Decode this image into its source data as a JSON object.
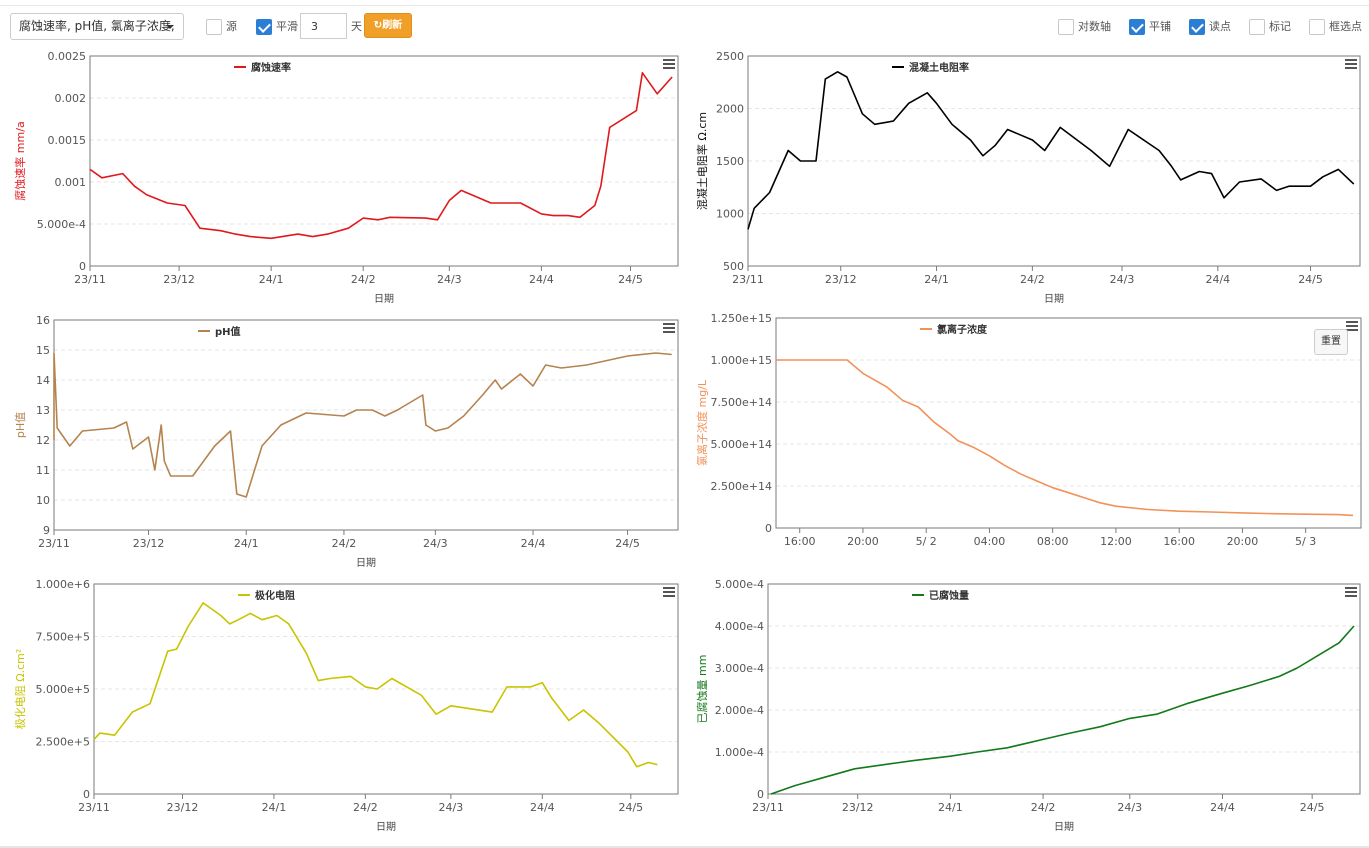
{
  "toolbar": {
    "selector_value": "腐蚀速率, pH值, 氯离子浓度,",
    "options_left": [
      {
        "label": "源",
        "checked": false
      },
      {
        "label": "平滑",
        "checked": true
      }
    ],
    "smooth_days": "3",
    "days_unit": "天",
    "refresh_label": "刷新",
    "options_right": [
      {
        "label": "对数轴",
        "checked": false
      },
      {
        "label": "平铺",
        "checked": true
      },
      {
        "label": "读点",
        "checked": true
      },
      {
        "label": "标记",
        "checked": false
      },
      {
        "label": "框选点",
        "checked": false
      }
    ]
  },
  "charts": {
    "reset_label": "重置"
  },
  "chart_data": [
    {
      "id": "corrosion-rate",
      "type": "line",
      "legend": "腐蚀速率",
      "color": "#e0191c",
      "ylabel": "腐蚀速率 mm/a",
      "xlabel": "日期",
      "x_ticks": [
        "23/11",
        "23/12",
        "24/1",
        "24/2",
        "24/3",
        "24/4",
        "24/5"
      ],
      "y_ticks": [
        "0",
        "5.000e-4",
        "0.001",
        "0.0015",
        "0.002",
        "0.0025"
      ],
      "ylim": [
        0,
        0.0025
      ],
      "x": [
        "2023-11-01",
        "2023-11-05",
        "2023-11-12",
        "2023-11-16",
        "2023-11-20",
        "2023-11-27",
        "2023-12-03",
        "2023-12-08",
        "2023-12-15",
        "2023-12-20",
        "2023-12-25",
        "2024-01-01",
        "2024-01-10",
        "2024-01-15",
        "2024-01-20",
        "2024-01-27",
        "2024-02-01",
        "2024-02-06",
        "2024-02-10",
        "2024-02-22",
        "2024-02-26",
        "2024-03-01",
        "2024-03-05",
        "2024-03-15",
        "2024-03-20",
        "2024-03-25",
        "2024-04-01",
        "2024-04-05",
        "2024-04-10",
        "2024-04-14",
        "2024-04-19",
        "2024-04-21",
        "2024-04-24",
        "2024-05-03",
        "2024-05-05",
        "2024-05-10",
        "2024-05-15"
      ],
      "y": [
        0.00115,
        0.00105,
        0.0011,
        0.00095,
        0.00085,
        0.00075,
        0.00072,
        0.00045,
        0.00042,
        0.00038,
        0.00035,
        0.00033,
        0.00038,
        0.00035,
        0.00038,
        0.00045,
        0.00057,
        0.00055,
        0.00058,
        0.00057,
        0.00055,
        0.00078,
        0.0009,
        0.00075,
        0.00075,
        0.00075,
        0.00062,
        0.0006,
        0.0006,
        0.00058,
        0.00072,
        0.00095,
        0.00165,
        0.00185,
        0.0023,
        0.00205,
        0.00225
      ]
    },
    {
      "id": "resistivity",
      "type": "line",
      "legend": "混凝土电阻率",
      "color": "#000000",
      "ylabel": "混凝土电阻率 Ω.cm",
      "xlabel": "日期",
      "x_ticks": [
        "23/11",
        "23/12",
        "24/1",
        "24/2",
        "24/3",
        "24/4",
        "24/5"
      ],
      "y_ticks": [
        "500",
        "1000",
        "1500",
        "2000",
        "2500"
      ],
      "ylim": [
        500,
        2500
      ],
      "x": [
        "2023-11-01",
        "2023-11-03",
        "2023-11-08",
        "2023-11-14",
        "2023-11-18",
        "2023-11-23",
        "2023-11-26",
        "2023-11-30",
        "2023-12-03",
        "2023-12-08",
        "2023-12-12",
        "2023-12-18",
        "2023-12-23",
        "2023-12-29",
        "2024-01-01",
        "2024-01-06",
        "2024-01-12",
        "2024-01-16",
        "2024-01-20",
        "2024-01-24",
        "2024-02-01",
        "2024-02-05",
        "2024-02-10",
        "2024-02-20",
        "2024-02-26",
        "2024-03-03",
        "2024-03-13",
        "2024-03-17",
        "2024-03-20",
        "2024-03-26",
        "2024-03-30",
        "2024-04-03",
        "2024-04-08",
        "2024-04-15",
        "2024-04-20",
        "2024-04-24",
        "2024-05-01",
        "2024-05-05",
        "2024-05-10",
        "2024-05-15"
      ],
      "y": [
        850,
        1050,
        1200,
        1600,
        1500,
        1500,
        2280,
        2350,
        2300,
        1950,
        1850,
        1880,
        2050,
        2150,
        2050,
        1850,
        1700,
        1550,
        1650,
        1800,
        1700,
        1600,
        1820,
        1600,
        1450,
        1800,
        1600,
        1450,
        1320,
        1400,
        1380,
        1150,
        1300,
        1330,
        1220,
        1260,
        1260,
        1350,
        1420,
        1280
      ]
    },
    {
      "id": "ph",
      "type": "line",
      "legend": "pH值",
      "color": "#b5834f",
      "ylabel": "pH值",
      "xlabel": "日期",
      "x_ticks": [
        "23/11",
        "23/12",
        "24/1",
        "24/2",
        "24/3",
        "24/4",
        "24/5"
      ],
      "y_ticks": [
        "9",
        "10",
        "11",
        "12",
        "13",
        "14",
        "15",
        "16"
      ],
      "ylim": [
        9,
        16
      ],
      "x": [
        "2023-11-01",
        "2023-11-01",
        "2023-11-02",
        "2023-11-06",
        "2023-11-10",
        "2023-11-20",
        "2023-11-24",
        "2023-11-26",
        "2023-12-01",
        "2023-12-03",
        "2023-12-05",
        "2023-12-06",
        "2023-12-08",
        "2023-12-15",
        "2023-12-22",
        "2023-12-27",
        "2023-12-29",
        "2024-01-01",
        "2024-01-06",
        "2024-01-12",
        "2024-01-20",
        "2024-02-01",
        "2024-02-05",
        "2024-02-10",
        "2024-02-14",
        "2024-02-18",
        "2024-02-26",
        "2024-02-27",
        "2024-03-01",
        "2024-03-05",
        "2024-03-10",
        "2024-03-16",
        "2024-03-20",
        "2024-03-22",
        "2024-03-28",
        "2024-04-01",
        "2024-04-05",
        "2024-04-10",
        "2024-04-18",
        "2024-05-01",
        "2024-05-10",
        "2024-05-15"
      ],
      "y": [
        12,
        14.9,
        12.4,
        11.8,
        12.3,
        12.4,
        12.6,
        11.7,
        12.1,
        11,
        12.5,
        11.3,
        10.8,
        10.8,
        11.8,
        12.3,
        10.2,
        10.1,
        11.8,
        12.5,
        12.9,
        12.8,
        13.0,
        13.0,
        12.8,
        13.0,
        13.5,
        12.5,
        12.3,
        12.4,
        12.8,
        13.5,
        14.0,
        13.7,
        14.2,
        13.8,
        14.5,
        14.4,
        14.5,
        14.8,
        14.9,
        14.85
      ]
    },
    {
      "id": "chloride",
      "type": "line",
      "legend": "氯离子浓度",
      "color": "#f1925a",
      "ylabel": "氯离子浓度 mg/L",
      "xlabel": "",
      "x_ticks": [
        "16:00",
        "20:00",
        "5/ 2",
        "04:00",
        "08:00",
        "12:00",
        "16:00",
        "20:00",
        "5/ 3"
      ],
      "y_ticks": [
        "0",
        "2.500e+14",
        "5.000e+14",
        "7.500e+14",
        "1.000e+15",
        "1.250e+15"
      ],
      "ylim": [
        0,
        1250000000000000.0
      ],
      "x_hours": [
        14.5,
        19,
        20,
        21.5,
        22.5,
        23.5,
        24.5,
        25.5,
        26,
        27,
        28,
        29,
        30,
        31,
        32,
        33,
        34,
        35,
        36,
        38,
        40,
        42,
        44,
        46,
        48,
        50,
        51
      ],
      "y": [
        1000000000000000.0,
        1000000000000000.0,
        920000000000000.0,
        840000000000000.0,
        760000000000000.0,
        720000000000000.0,
        630000000000000.0,
        560000000000000.0,
        520000000000000.0,
        480000000000000.0,
        430000000000000.0,
        370000000000000.0,
        320000000000000.0,
        280000000000000.0,
        240000000000000.0,
        210000000000000.0,
        180000000000000.0,
        150000000000000.0,
        130000000000000.0,
        110000000000000.0,
        100000000000000.0,
        95000000000000.0,
        90000000000000.0,
        85000000000000.0,
        82000000000000.0,
        80000000000000.0,
        75000000000000.0
      ]
    },
    {
      "id": "polarization",
      "type": "line",
      "legend": "极化电阻",
      "color": "#c8c400",
      "ylabel": "极化电阻 Ω.cm²",
      "xlabel": "日期",
      "x_ticks": [
        "23/11",
        "23/12",
        "24/1",
        "24/2",
        "24/3",
        "24/4",
        "24/5"
      ],
      "y_ticks": [
        "0",
        "2.500e+5",
        "5.000e+5",
        "7.500e+5",
        "1.000e+6"
      ],
      "ylim": [
        0,
        1000000
      ],
      "x": [
        "2023-11-01",
        "2023-11-03",
        "2023-11-08",
        "2023-11-14",
        "2023-11-20",
        "2023-11-26",
        "2023-11-29",
        "2023-12-03",
        "2023-12-08",
        "2023-12-14",
        "2023-12-17",
        "2023-12-20",
        "2023-12-24",
        "2023-12-28",
        "2024-01-02",
        "2024-01-06",
        "2024-01-12",
        "2024-01-16",
        "2024-01-20",
        "2024-01-27",
        "2024-02-01",
        "2024-02-05",
        "2024-02-10",
        "2024-02-20",
        "2024-02-25",
        "2024-03-01",
        "2024-03-15",
        "2024-03-20",
        "2024-03-22",
        "2024-03-28",
        "2024-04-01",
        "2024-04-04",
        "2024-04-10",
        "2024-04-15",
        "2024-04-20",
        "2024-04-30",
        "2024-05-03",
        "2024-05-07",
        "2024-05-10"
      ],
      "y": [
        260000,
        290000,
        280000,
        390000,
        430000,
        680000,
        690000,
        800000,
        910000,
        850000,
        810000,
        830000,
        860000,
        830000,
        850000,
        810000,
        670000,
        540000,
        550000,
        560000,
        510000,
        500000,
        550000,
        470000,
        380000,
        420000,
        390000,
        510000,
        510000,
        510000,
        530000,
        460000,
        350000,
        400000,
        340000,
        200000,
        130000,
        150000,
        140000
      ]
    },
    {
      "id": "corroded-amount",
      "type": "line",
      "legend": "已腐蚀量",
      "color": "#13791b",
      "ylabel": "已腐蚀量 mm",
      "xlabel": "日期",
      "x_ticks": [
        "23/11",
        "23/12",
        "24/1",
        "24/2",
        "24/3",
        "24/4",
        "24/5"
      ],
      "y_ticks": [
        "0",
        "1.000e-4",
        "2.000e-4",
        "3.000e-4",
        "4.000e-4",
        "5.000e-4"
      ],
      "ylim": [
        0,
        0.0005
      ],
      "x": [
        "2023-11-02",
        "2023-11-10",
        "2023-11-20",
        "2023-11-30",
        "2023-12-10",
        "2023-12-20",
        "2024-01-01",
        "2024-01-10",
        "2024-01-20",
        "2024-02-01",
        "2024-02-10",
        "2024-02-20",
        "2024-03-01",
        "2024-03-10",
        "2024-03-20",
        "2024-04-01",
        "2024-04-10",
        "2024-04-20",
        "2024-04-26",
        "2024-05-03",
        "2024-05-10",
        "2024-05-15"
      ],
      "y": [
        0,
        2e-05,
        4e-05,
        6e-05,
        7e-05,
        8e-05,
        9e-05,
        0.0001,
        0.00011,
        0.00013,
        0.000145,
        0.00016,
        0.00018,
        0.00019,
        0.000215,
        0.00024,
        0.000258,
        0.00028,
        0.0003,
        0.00033,
        0.00036,
        0.0004
      ]
    }
  ]
}
